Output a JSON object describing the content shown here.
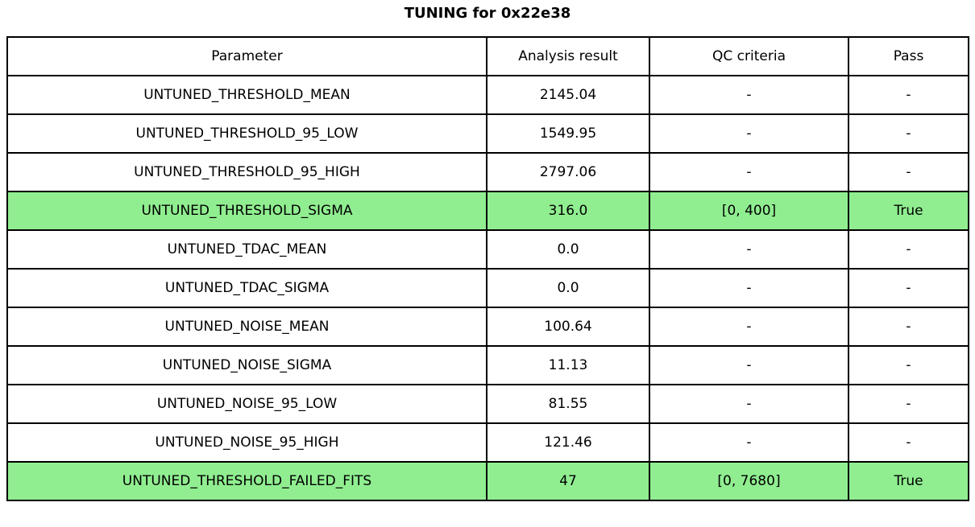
{
  "title": "TUNING for 0x22e38",
  "colors": {
    "highlight": "#90EE90",
    "border": "#000000",
    "background": "#ffffff",
    "text": "#000000"
  },
  "chart_data": {
    "type": "table",
    "title": "TUNING for 0x22e38",
    "columns": [
      "Parameter",
      "Analysis result",
      "QC criteria",
      "Pass"
    ],
    "rows": [
      {
        "parameter": "UNTUNED_THRESHOLD_MEAN",
        "result": "2145.04",
        "qc": "-",
        "pass": "-",
        "highlight": false
      },
      {
        "parameter": "UNTUNED_THRESHOLD_95_LOW",
        "result": "1549.95",
        "qc": "-",
        "pass": "-",
        "highlight": false
      },
      {
        "parameter": "UNTUNED_THRESHOLD_95_HIGH",
        "result": "2797.06",
        "qc": "-",
        "pass": "-",
        "highlight": false
      },
      {
        "parameter": "UNTUNED_THRESHOLD_SIGMA",
        "result": "316.0",
        "qc": "[0, 400]",
        "pass": "True",
        "highlight": true
      },
      {
        "parameter": "UNTUNED_TDAC_MEAN",
        "result": "0.0",
        "qc": "-",
        "pass": "-",
        "highlight": false
      },
      {
        "parameter": "UNTUNED_TDAC_SIGMA",
        "result": "0.0",
        "qc": "-",
        "pass": "-",
        "highlight": false
      },
      {
        "parameter": "UNTUNED_NOISE_MEAN",
        "result": "100.64",
        "qc": "-",
        "pass": "-",
        "highlight": false
      },
      {
        "parameter": "UNTUNED_NOISE_SIGMA",
        "result": "11.13",
        "qc": "-",
        "pass": "-",
        "highlight": false
      },
      {
        "parameter": "UNTUNED_NOISE_95_LOW",
        "result": "81.55",
        "qc": "-",
        "pass": "-",
        "highlight": false
      },
      {
        "parameter": "UNTUNED_NOISE_95_HIGH",
        "result": "121.46",
        "qc": "-",
        "pass": "-",
        "highlight": false
      },
      {
        "parameter": "UNTUNED_THRESHOLD_FAILED_FITS",
        "result": "47",
        "qc": "[0, 7680]",
        "pass": "True",
        "highlight": true
      }
    ]
  }
}
